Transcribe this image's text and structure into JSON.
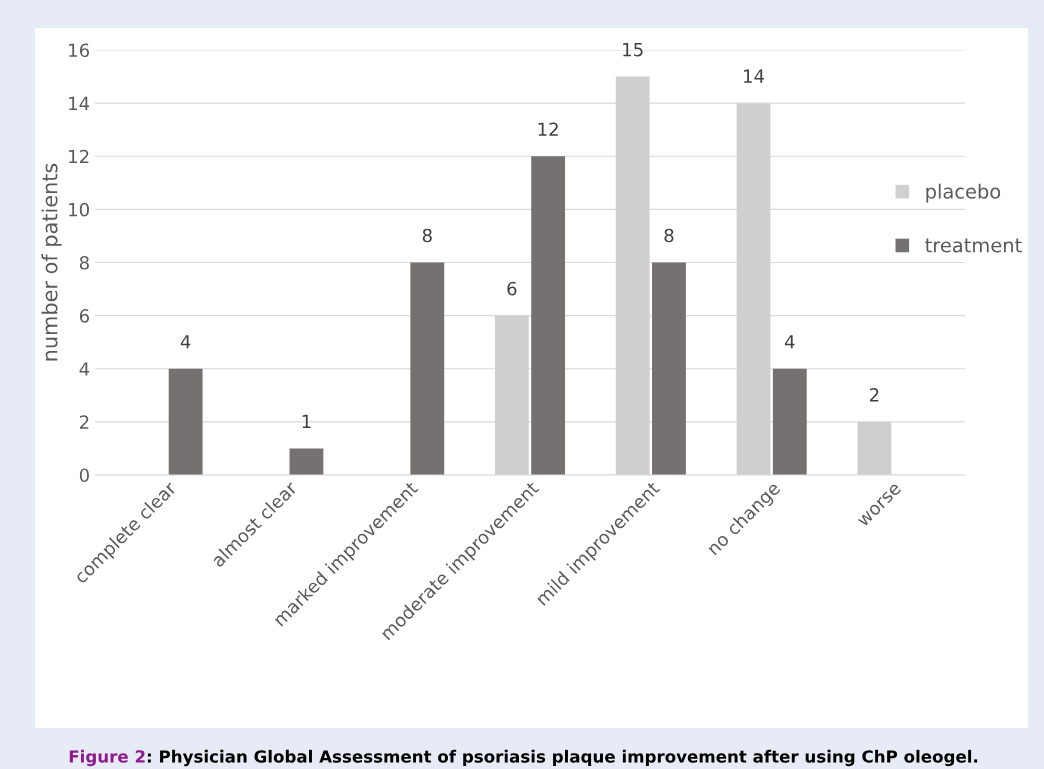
{
  "chart_data": {
    "type": "bar",
    "ylabel": "number of patients",
    "categories": [
      "complete clear",
      "almost clear",
      "marked improvement",
      "moderate improvement",
      "mild improvement",
      "no change",
      "worse"
    ],
    "series": [
      {
        "name": "placebo",
        "color": "#d0cfcf",
        "values": [
          0,
          0,
          0,
          6,
          15,
          14,
          2
        ],
        "value_labels": [
          null,
          null,
          null,
          "6",
          "15",
          "14",
          "2"
        ]
      },
      {
        "name": "treatment",
        "color": "#767171",
        "values": [
          4,
          1,
          8,
          12,
          8,
          4,
          0
        ],
        "value_labels": [
          "4",
          "1",
          "8",
          "12",
          "8",
          "4",
          null
        ]
      }
    ],
    "ylim": [
      0,
      16
    ],
    "yticks": [
      0,
      2,
      4,
      6,
      8,
      10,
      12,
      14,
      16
    ],
    "grid": "y",
    "legend": "right",
    "annotations": [
      "Figure 2",
      ": Physician Global Assessment of psoriasis plaque improvement after using ChP oleogel."
    ]
  }
}
